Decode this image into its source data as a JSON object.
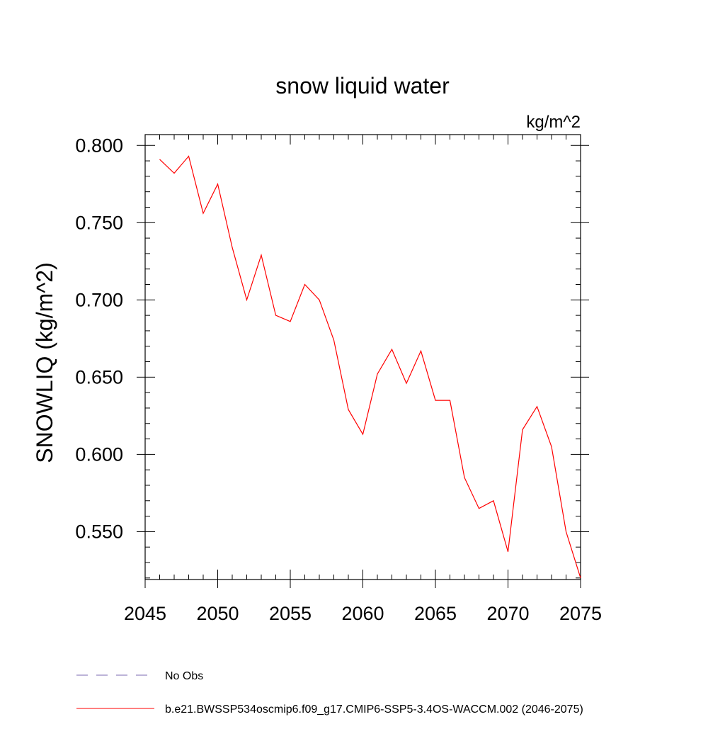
{
  "chart_data": {
    "type": "line",
    "title": "snow liquid water",
    "units_label": "kg/m^2",
    "ylabel": "SNOWLIQ  (kg/m^2)",
    "xlabel": "",
    "xlim": [
      2045,
      2075
    ],
    "ylim": [
      0.519,
      0.807
    ],
    "x_ticks": [
      2045,
      2050,
      2055,
      2060,
      2065,
      2070,
      2075
    ],
    "x_tick_labels": [
      "2045",
      "2050",
      "2055",
      "2060",
      "2065",
      "2070",
      "2075"
    ],
    "y_ticks": [
      0.55,
      0.6,
      0.65,
      0.7,
      0.75,
      0.8
    ],
    "y_tick_labels": [
      "0.550",
      "0.600",
      "0.650",
      "0.700",
      "0.750",
      "0.800"
    ],
    "grid": false,
    "legend_position": "bottom",
    "series": [
      {
        "name": "b.e21.BWSSP534oscmip6.f09_g17.CMIP6-SSP5-3.4OS-WACCM.002 (2046-2075)",
        "color": "#ff0000",
        "style": "solid",
        "x": [
          2046,
          2047,
          2048,
          2049,
          2050,
          2051,
          2052,
          2053,
          2054,
          2055,
          2056,
          2057,
          2058,
          2059,
          2060,
          2061,
          2062,
          2063,
          2064,
          2065,
          2066,
          2067,
          2068,
          2069,
          2070,
          2071,
          2072,
          2073,
          2074,
          2075
        ],
        "values": [
          0.791,
          0.782,
          0.793,
          0.756,
          0.775,
          0.734,
          0.7,
          0.729,
          0.69,
          0.686,
          0.71,
          0.7,
          0.674,
          0.629,
          0.613,
          0.652,
          0.668,
          0.646,
          0.667,
          0.635,
          0.635,
          0.585,
          0.565,
          0.57,
          0.537,
          0.616,
          0.631,
          0.605,
          0.55,
          0.52
        ]
      }
    ],
    "legend": [
      {
        "label": "No Obs",
        "color": "#7b68b0",
        "style": "dashed"
      },
      {
        "label": "b.e21.BWSSP534oscmip6.f09_g17.CMIP6-SSP5-3.4OS-WACCM.002 (2046-2075)",
        "color": "#ff0000",
        "style": "solid"
      }
    ]
  }
}
